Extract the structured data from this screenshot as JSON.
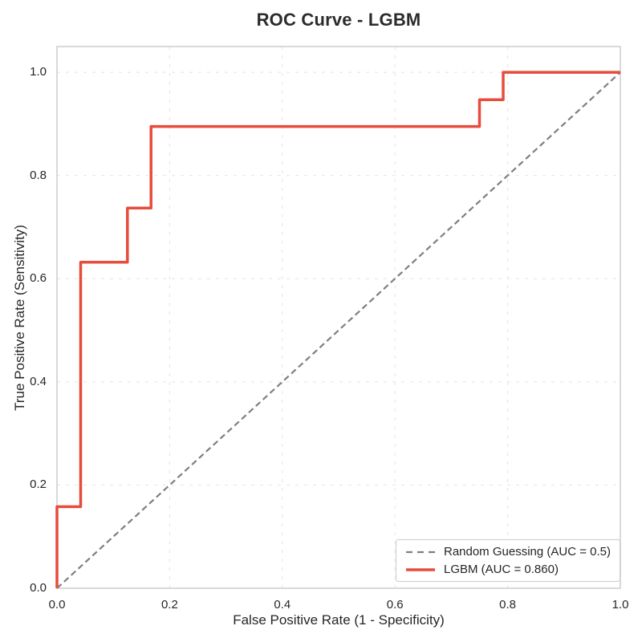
{
  "chart_data": {
    "type": "line",
    "title": "ROC Curve - LGBM",
    "xlabel": "False Positive Rate (1 - Specificity)",
    "ylabel": "True Positive Rate (Sensitivity)",
    "xlim": [
      0.0,
      1.0
    ],
    "ylim": [
      0.0,
      1.05
    ],
    "x_ticks": [
      0.0,
      0.2,
      0.4,
      0.6,
      0.8,
      1.0
    ],
    "x_tick_labels": [
      "0.0",
      "0.2",
      "0.4",
      "0.6",
      "0.8",
      "1.0"
    ],
    "y_ticks": [
      0.0,
      0.2,
      0.4,
      0.6,
      0.8,
      1.0
    ],
    "y_tick_labels": [
      "0.0",
      "0.2",
      "0.4",
      "0.6",
      "0.8",
      "1.0"
    ],
    "grid": {
      "visible": true,
      "style": "dashed",
      "color": "#e4e4e4"
    },
    "axes_border_color": "#c9c9c9",
    "text_color": "#262626",
    "legend": {
      "position": "lower right"
    },
    "series": [
      {
        "name": "Random Guessing (AUC = 0.5)",
        "color": "#7f7f7f",
        "style": "dashed",
        "width": 2.2,
        "points": [
          [
            0.0,
            0.0
          ],
          [
            1.0,
            1.0
          ]
        ]
      },
      {
        "name": "LGBM (AUC = 0.860)",
        "color": "#e74c3c",
        "style": "solid",
        "width": 3.5,
        "points": [
          [
            0.0,
            0.0
          ],
          [
            0.0,
            0.158
          ],
          [
            0.042,
            0.158
          ],
          [
            0.042,
            0.632
          ],
          [
            0.125,
            0.632
          ],
          [
            0.125,
            0.737
          ],
          [
            0.167,
            0.737
          ],
          [
            0.167,
            0.895
          ],
          [
            0.75,
            0.895
          ],
          [
            0.75,
            0.947
          ],
          [
            0.792,
            0.947
          ],
          [
            0.792,
            1.0
          ],
          [
            1.0,
            1.0
          ]
        ]
      }
    ]
  }
}
